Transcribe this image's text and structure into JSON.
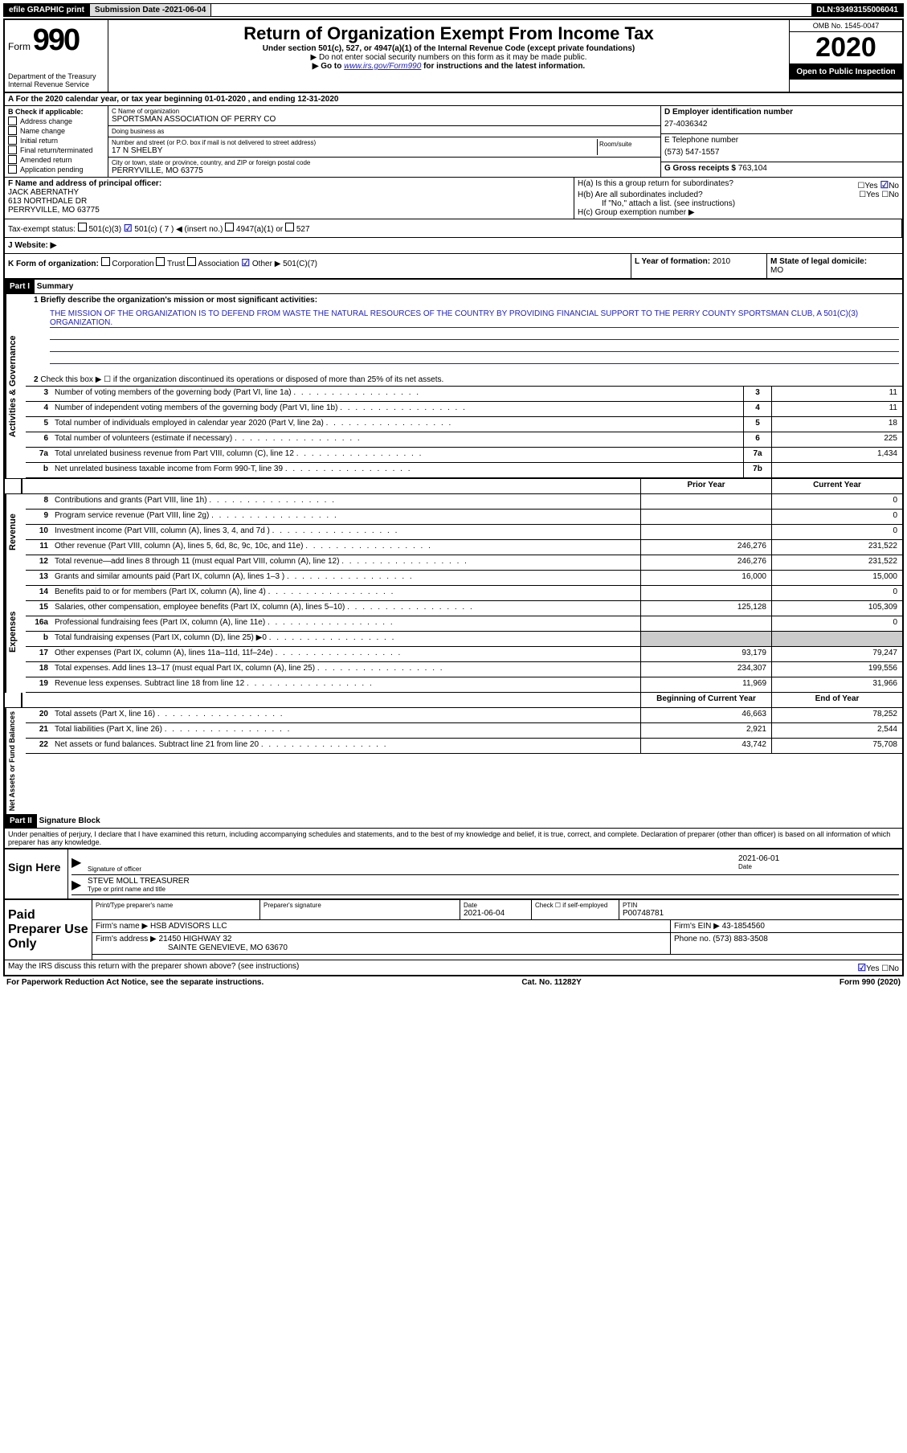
{
  "topbar": {
    "efile": "efile GRAPHIC print",
    "subdate_label": "Submission Date - ",
    "subdate": "2021-06-04",
    "dln_label": "DLN: ",
    "dln": "93493155006041"
  },
  "header": {
    "form_label": "Form",
    "form_num": "990",
    "dept": "Department of the Treasury\nInternal Revenue Service",
    "title": "Return of Organization Exempt From Income Tax",
    "subtitle": "Under section 501(c), 527, or 4947(a)(1) of the Internal Revenue Code (except private foundations)",
    "note1": "▶ Do not enter social security numbers on this form as it may be made public.",
    "note2_pre": "▶ Go to ",
    "note2_link": "www.irs.gov/Form990",
    "note2_post": " for instructions and the latest information.",
    "omb": "OMB No. 1545-0047",
    "year": "2020",
    "open": "Open to Public Inspection"
  },
  "rowA": "A For the 2020 calendar year, or tax year beginning 01-01-2020    , and ending 12-31-2020",
  "colB": {
    "label": "B Check if applicable:",
    "items": [
      "Address change",
      "Name change",
      "Initial return",
      "Final return/terminated",
      "Amended return",
      "Application pending"
    ]
  },
  "colC": {
    "name_label": "C Name of organization",
    "name": "SPORTSMAN ASSOCIATION OF PERRY CO",
    "dba_label": "Doing business as",
    "addr_label": "Number and street (or P.O. box if mail is not delivered to street address)",
    "room_label": "Room/suite",
    "addr": "17 N SHELBY",
    "city_label": "City or town, state or province, country, and ZIP or foreign postal code",
    "city": "PERRYVILLE, MO  63775"
  },
  "colD": {
    "ein_label": "D Employer identification number",
    "ein": "27-4036342",
    "tel_label": "E Telephone number",
    "tel": "(573) 547-1557",
    "gross_label": "G Gross receipts $ ",
    "gross": "763,104"
  },
  "rowF": {
    "label": "F  Name and address of principal officer:",
    "name": "JACK ABERNATHY",
    "addr1": "613 NORTHDALE DR",
    "addr2": "PERRYVILLE, MO  63775"
  },
  "rowH": {
    "ha": "H(a)  Is this a group return for subordinates?",
    "hb": "H(b)  Are all subordinates included?",
    "hb_note": "If \"No,\" attach a list. (see instructions)",
    "hc": "H(c)  Group exemption number ▶"
  },
  "rowI": {
    "label": "Tax-exempt status:",
    "opt1": "501(c)(3)",
    "opt2": "501(c) ( 7 ) ◀ (insert no.)",
    "opt3": "4947(a)(1) or",
    "opt4": "527"
  },
  "rowJ": "J  Website: ▶",
  "rowK": {
    "label": "K Form of organization:",
    "opts": [
      "Corporation",
      "Trust",
      "Association",
      "Other ▶"
    ],
    "other_val": "501(C)(7)"
  },
  "rowL": {
    "label": "L Year of formation: ",
    "val": "2010"
  },
  "rowM": {
    "label": "M State of legal domicile:",
    "val": "MO"
  },
  "parts": {
    "p1": "Part I",
    "p1_title": "Summary",
    "p2": "Part II",
    "p2_title": "Signature Block"
  },
  "summary": {
    "q1": "1  Briefly describe the organization's mission or most significant activities:",
    "mission": "THE MISSION OF THE ORGANIZATION IS TO DEFEND FROM WASTE THE NATURAL RESOURCES OF THE COUNTRY BY PROVIDING FINANCIAL SUPPORT TO THE PERRY COUNTY SPORTSMAN CLUB, A 501(C)(3) ORGANIZATION.",
    "q2": "Check this box ▶ ☐  if the organization discontinued its operations or disposed of more than 25% of its net assets.",
    "lines_top": [
      {
        "n": "3",
        "d": "Number of voting members of the governing body (Part VI, line 1a)",
        "box": "3",
        "v": "11"
      },
      {
        "n": "4",
        "d": "Number of independent voting members of the governing body (Part VI, line 1b)",
        "box": "4",
        "v": "11"
      },
      {
        "n": "5",
        "d": "Total number of individuals employed in calendar year 2020 (Part V, line 2a)",
        "box": "5",
        "v": "18"
      },
      {
        "n": "6",
        "d": "Total number of volunteers (estimate if necessary)",
        "box": "6",
        "v": "225"
      },
      {
        "n": "7a",
        "d": "Total unrelated business revenue from Part VIII, column (C), line 12",
        "box": "7a",
        "v": "1,434"
      },
      {
        "n": "b",
        "d": "Net unrelated business taxable income from Form 990-T, line 39",
        "box": "7b",
        "v": ""
      }
    ],
    "hdr_prior": "Prior Year",
    "hdr_curr": "Current Year",
    "revenue": [
      {
        "n": "8",
        "d": "Contributions and grants (Part VIII, line 1h)",
        "p": "",
        "c": "0"
      },
      {
        "n": "9",
        "d": "Program service revenue (Part VIII, line 2g)",
        "p": "",
        "c": "0"
      },
      {
        "n": "10",
        "d": "Investment income (Part VIII, column (A), lines 3, 4, and 7d )",
        "p": "",
        "c": "0"
      },
      {
        "n": "11",
        "d": "Other revenue (Part VIII, column (A), lines 5, 6d, 8c, 9c, 10c, and 11e)",
        "p": "246,276",
        "c": "231,522"
      },
      {
        "n": "12",
        "d": "Total revenue—add lines 8 through 11 (must equal Part VIII, column (A), line 12)",
        "p": "246,276",
        "c": "231,522"
      }
    ],
    "expenses": [
      {
        "n": "13",
        "d": "Grants and similar amounts paid (Part IX, column (A), lines 1–3 )",
        "p": "16,000",
        "c": "15,000"
      },
      {
        "n": "14",
        "d": "Benefits paid to or for members (Part IX, column (A), line 4)",
        "p": "",
        "c": "0"
      },
      {
        "n": "15",
        "d": "Salaries, other compensation, employee benefits (Part IX, column (A), lines 5–10)",
        "p": "125,128",
        "c": "105,309"
      },
      {
        "n": "16a",
        "d": "Professional fundraising fees (Part IX, column (A), line 11e)",
        "p": "",
        "c": "0"
      },
      {
        "n": "b",
        "d": "Total fundraising expenses (Part IX, column (D), line 25) ▶0",
        "p": "GRAY",
        "c": "GRAY"
      },
      {
        "n": "17",
        "d": "Other expenses (Part IX, column (A), lines 11a–11d, 11f–24e)",
        "p": "93,179",
        "c": "79,247"
      },
      {
        "n": "18",
        "d": "Total expenses. Add lines 13–17 (must equal Part IX, column (A), line 25)",
        "p": "234,307",
        "c": "199,556"
      },
      {
        "n": "19",
        "d": "Revenue less expenses. Subtract line 18 from line 12",
        "p": "11,969",
        "c": "31,966"
      }
    ],
    "hdr_begin": "Beginning of Current Year",
    "hdr_end": "End of Year",
    "netassets": [
      {
        "n": "20",
        "d": "Total assets (Part X, line 16)",
        "p": "46,663",
        "c": "78,252"
      },
      {
        "n": "21",
        "d": "Total liabilities (Part X, line 26)",
        "p": "2,921",
        "c": "2,544"
      },
      {
        "n": "22",
        "d": "Net assets or fund balances. Subtract line 21 from line 20",
        "p": "43,742",
        "c": "75,708"
      }
    ],
    "sidebars": {
      "s1": "Activities & Governance",
      "s2": "Revenue",
      "s3": "Expenses",
      "s4": "Net Assets or Fund Balances"
    }
  },
  "penalties": "Under penalties of perjury, I declare that I have examined this return, including accompanying schedules and statements, and to the best of my knowledge and belief, it is true, correct, and complete. Declaration of preparer (other than officer) is based on all information of which preparer has any knowledge.",
  "sign": {
    "here": "Sign Here",
    "officer": "Signature of officer",
    "date_lbl": "Date",
    "date": "2021-06-01",
    "name": "STEVE MOLL  TREASURER",
    "name_lbl": "Type or print name and title"
  },
  "paid": {
    "label": "Paid Preparer Use Only",
    "col1": "Print/Type preparer's name",
    "col2": "Preparer's signature",
    "col3": "Date",
    "date": "2021-06-04",
    "col4": "Check ☐ if self-employed",
    "col5_lbl": "PTIN",
    "ptin": "P00748781",
    "firm_lbl": "Firm's name    ▶",
    "firm": "HSB ADVISORS LLC",
    "ein_lbl": "Firm's EIN ▶",
    "ein": "43-1854560",
    "addr_lbl": "Firm's address ▶",
    "addr1": "21450 HIGHWAY 32",
    "addr2": "SAINTE GENEVIEVE, MO  63670",
    "phone_lbl": "Phone no. ",
    "phone": "(573) 883-3508",
    "discuss": "May the IRS discuss this return with the preparer shown above? (see instructions)"
  },
  "footer": {
    "l": "For Paperwork Reduction Act Notice, see the separate instructions.",
    "c": "Cat. No. 11282Y",
    "r": "Form 990 (2020)"
  },
  "yesno": {
    "yes": "Yes",
    "no": "No"
  }
}
